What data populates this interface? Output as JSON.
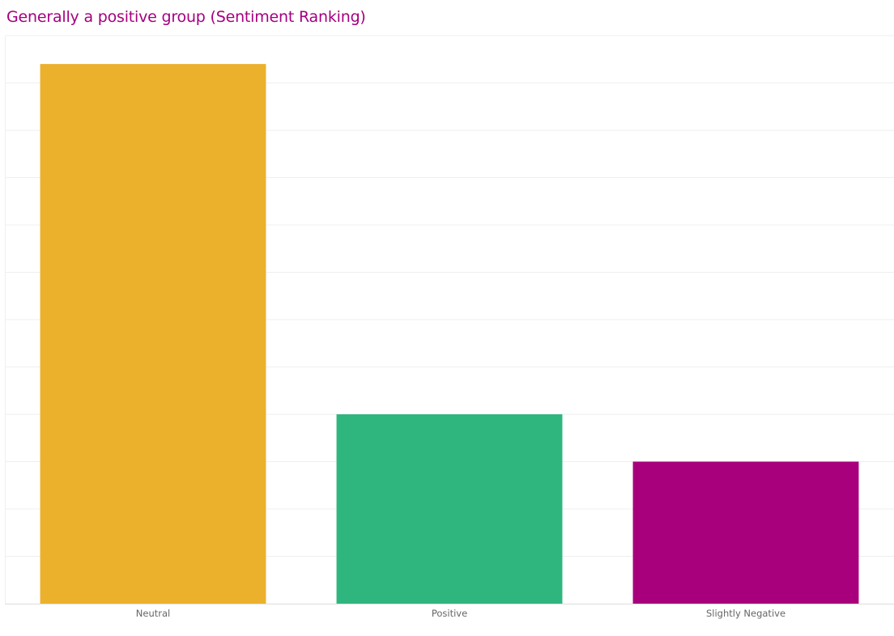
{
  "chart_data": {
    "type": "bar",
    "title": "Generally a positive group (Sentiment Ranking)",
    "categories": [
      "Neutral",
      "Positive",
      "Slightly Negative"
    ],
    "values": [
      11.4,
      4,
      3
    ],
    "ylim": [
      0,
      12
    ],
    "grid": true,
    "legend": "none",
    "colors": {
      "title": "#A5007F",
      "bars": [
        "#EBB12D",
        "#2FB67E",
        "#A8007C"
      ],
      "grid": "#EFEFEF",
      "axis": "#DDDDDD"
    }
  }
}
